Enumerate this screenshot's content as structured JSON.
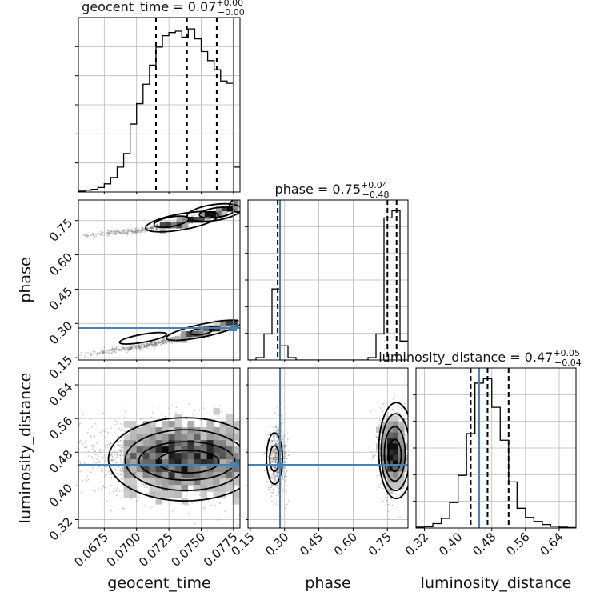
{
  "chart_data": {
    "type": "corner",
    "parameters": [
      "geocent_time",
      "phase",
      "luminosity_distance"
    ],
    "truths": {
      "geocent_time": 0.0775,
      "phase": 0.28,
      "luminosity_distance": 0.45
    },
    "titles": [
      {
        "param": "geocent_time",
        "median": "0.07",
        "plus": "+0.00",
        "minus": "−0.00"
      },
      {
        "param": "phase",
        "median": "0.75",
        "plus": "+0.04",
        "minus": "−0.48"
      },
      {
        "param": "luminosity_distance",
        "median": "0.47",
        "plus": "+0.05",
        "minus": "−0.04"
      }
    ],
    "axes": {
      "geocent_time": {
        "range": [
          0.0655,
          0.078
        ],
        "ticks": [
          "0.0675",
          "0.0700",
          "0.0725",
          "0.0750",
          "0.0775"
        ]
      },
      "phase": {
        "range": [
          0.14,
          0.84
        ],
        "ticks": [
          "0.15",
          "0.30",
          "0.45",
          "0.60",
          "0.75"
        ]
      },
      "luminosity_distance": {
        "range": [
          0.3,
          0.68
        ],
        "ticks": [
          "0.32",
          "0.40",
          "0.48",
          "0.56",
          "0.64"
        ]
      }
    },
    "histograms": {
      "geocent_time": {
        "quantiles": [
          0.0715,
          0.0739,
          0.0762
        ],
        "bin_edges": [
          0.0655,
          0.066,
          0.0665,
          0.067,
          0.0675,
          0.068,
          0.0685,
          0.069,
          0.0695,
          0.07,
          0.0705,
          0.071,
          0.0715,
          0.072,
          0.0725,
          0.073,
          0.0735,
          0.074,
          0.0745,
          0.075,
          0.0755,
          0.076,
          0.0765,
          0.077,
          0.0775,
          0.078
        ],
        "counts": [
          2,
          4,
          6,
          10,
          18,
          32,
          55,
          85,
          150,
          195,
          238,
          280,
          320,
          345,
          352,
          355,
          342,
          360,
          338,
          310,
          290,
          270,
          245,
          240,
          55
        ]
      },
      "phase": {
        "quantiles": [
          0.27,
          0.75,
          0.79
        ],
        "bin_edges": [
          0.14,
          0.175,
          0.21,
          0.245,
          0.28,
          0.315,
          0.35,
          0.385,
          0.42,
          0.455,
          0.49,
          0.525,
          0.56,
          0.595,
          0.63,
          0.665,
          0.7,
          0.735,
          0.77,
          0.805,
          0.84
        ],
        "counts": [
          0,
          5,
          55,
          150,
          30,
          5,
          0,
          0,
          0,
          0,
          0,
          0,
          0,
          0,
          0,
          5,
          55,
          300,
          315,
          40
        ]
      },
      "luminosity_distance": {
        "quantiles": [
          0.43,
          0.47,
          0.52
        ],
        "bin_edges": [
          0.3,
          0.32,
          0.34,
          0.36,
          0.38,
          0.4,
          0.42,
          0.44,
          0.46,
          0.48,
          0.5,
          0.52,
          0.54,
          0.56,
          0.58,
          0.6,
          0.62,
          0.64,
          0.66,
          0.68
        ],
        "counts": [
          2,
          3,
          10,
          22,
          58,
          120,
          215,
          330,
          340,
          275,
          200,
          105,
          45,
          24,
          15,
          8,
          4,
          2,
          1
        ]
      }
    },
    "joint_distributions": [
      {
        "x": "geocent_time",
        "y": "phase",
        "modes": [
          {
            "x": [
              0.0655,
              0.0705,
              0.0735,
              0.076,
              0.0778
            ],
            "y": [
              0.68,
              0.71,
              0.74,
              0.78,
              0.82
            ],
            "core": [
              0.0725,
              0.0775
            ]
          },
          {
            "x": [
              0.0655,
              0.0705,
              0.0735,
              0.076,
              0.0778
            ],
            "y": [
              0.16,
              0.2,
              0.24,
              0.28,
              0.31
            ],
            "core": [
              0.0735,
              0.0775
            ]
          }
        ]
      },
      {
        "x": "geocent_time",
        "y": "luminosity_distance",
        "center": [
          0.0737,
          0.465
        ],
        "spread": [
          0.004,
          0.045
        ]
      },
      {
        "x": "phase",
        "y": "luminosity_distance",
        "modes": [
          {
            "center": [
              0.27,
              0.465
            ],
            "spread": [
              0.02,
              0.04
            ]
          },
          {
            "center": [
              0.775,
              0.48
            ],
            "spread": [
              0.03,
              0.045
            ]
          }
        ]
      }
    ]
  }
}
